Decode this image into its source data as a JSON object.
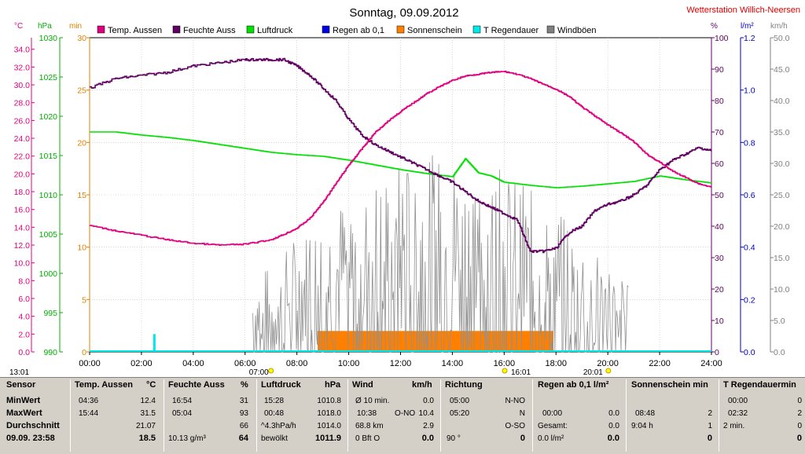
{
  "chart_data": {
    "type": "line",
    "title": "Sonntag, 09.09.2012",
    "station": "Wetterstation Willich-Neersen",
    "legend": [
      {
        "name": "Temp. Aussen",
        "color": "#e0007e"
      },
      {
        "name": "Feuchte Auss",
        "color": "#600060"
      },
      {
        "name": "Luftdruck",
        "color": "#00e000"
      },
      {
        "name": "Regen ab 0,1",
        "color": "#0000e0"
      },
      {
        "name": "Sonnenschein",
        "color": "#ff8000"
      },
      {
        "name": "T Regendauer",
        "color": "#00e8e8"
      },
      {
        "name": "Windböen",
        "color": "#808080"
      }
    ],
    "axis_units": {
      "temp": "°C",
      "press": "hPa",
      "min": "min",
      "hum": "%",
      "rain": "l/m²",
      "wind": "km/h"
    },
    "x_ticks": [
      "00:00",
      "02:00",
      "04:00",
      "06:00",
      "08:00",
      "10:00",
      "12:00",
      "14:00",
      "16:00",
      "18:00",
      "20:00",
      "22:00",
      "24:00"
    ],
    "x_range_hours": [
      0,
      24
    ],
    "temp_ticks": [
      "0.0",
      "2.0",
      "4.0",
      "6.0",
      "8.0",
      "10.0",
      "12.0",
      "14.0",
      "16.0",
      "18.0",
      "20.0",
      "22.0",
      "24.0",
      "26.0",
      "28.0",
      "30.0",
      "32.0",
      "34.0"
    ],
    "press_ticks": [
      "990",
      "995",
      "1000",
      "1005",
      "1010",
      "1015",
      "1020",
      "1025",
      "1030"
    ],
    "min_ticks": [
      "0",
      "5",
      "10",
      "15",
      "20",
      "25",
      "30"
    ],
    "hum_ticks": [
      "0",
      "10",
      "20",
      "30",
      "40",
      "50",
      "60",
      "70",
      "80",
      "90",
      "100"
    ],
    "rain_ticks": [
      "0.0",
      "0.2",
      "0.4",
      "0.6",
      "0.8",
      "1.0",
      "1.2"
    ],
    "wind_ticks": [
      "0.0",
      "5.0",
      "10.0",
      "15.0",
      "20.0",
      "25.0",
      "30.0",
      "35.0",
      "40.0",
      "45.0",
      "50.0"
    ],
    "temp_range": [
      0,
      35.3
    ],
    "press_range": [
      990,
      1030
    ],
    "hum_range": [
      0,
      100
    ],
    "wind_range": [
      0,
      50
    ],
    "temperature": {
      "x": [
        0,
        1,
        2,
        3,
        4,
        5,
        6,
        7,
        7.5,
        8,
        8.5,
        9,
        9.5,
        10,
        10.5,
        11,
        11.5,
        12,
        12.5,
        13,
        13.5,
        14,
        14.5,
        15,
        15.5,
        16,
        16.5,
        17,
        17.5,
        18,
        18.5,
        19,
        19.5,
        20,
        20.5,
        21,
        21.5,
        22,
        22.5,
        23,
        23.5,
        24
      ],
      "y": [
        14.2,
        13.6,
        13.1,
        12.6,
        12.2,
        12.0,
        12.1,
        12.6,
        13.2,
        13.9,
        15.0,
        16.8,
        18.9,
        21.0,
        22.8,
        24.6,
        25.9,
        27.0,
        28.0,
        29.0,
        29.8,
        30.5,
        31.0,
        31.2,
        31.4,
        31.5,
        31.2,
        30.7,
        30.1,
        29.5,
        28.7,
        27.5,
        26.5,
        25.5,
        24.6,
        23.6,
        22.2,
        21.3,
        20.3,
        19.6,
        18.9,
        18.5
      ]
    },
    "humidity": {
      "x": [
        0,
        1,
        2,
        3,
        4,
        5,
        6,
        6.5,
        7,
        7.5,
        8,
        8.5,
        9,
        9.5,
        10,
        10.5,
        11,
        11.5,
        12,
        12.5,
        13,
        13.5,
        14,
        14.5,
        15,
        15.5,
        16,
        16.5,
        17,
        17.5,
        18,
        18.5,
        19,
        19.5,
        20,
        20.5,
        21,
        21.5,
        22,
        22.5,
        23,
        23.5,
        24
      ],
      "y": [
        84,
        87,
        88,
        89,
        91,
        92,
        93,
        93,
        93,
        93,
        91,
        88,
        84,
        80,
        74,
        69,
        66,
        64,
        62,
        60,
        58,
        56,
        54,
        51,
        48,
        46,
        44,
        42,
        32,
        32,
        33,
        38,
        40,
        45,
        47,
        48,
        50,
        53,
        58,
        61,
        63,
        65,
        64
      ]
    },
    "pressure": {
      "x": [
        0,
        1,
        2,
        3,
        4,
        5,
        6,
        7,
        8,
        9,
        10,
        11,
        12,
        13,
        14,
        14.5,
        15,
        15.5,
        16,
        17,
        18,
        19,
        20,
        21,
        22,
        23,
        24
      ],
      "y": [
        1018.0,
        1018.0,
        1017.6,
        1017.3,
        1016.9,
        1016.4,
        1015.9,
        1015.4,
        1015.1,
        1014.9,
        1014.4,
        1013.8,
        1013.2,
        1012.7,
        1012.3,
        1014.6,
        1012.8,
        1012.4,
        1011.6,
        1011.2,
        1010.9,
        1011.1,
        1011.4,
        1011.7,
        1012.4,
        1011.9,
        1011.5
      ]
    },
    "sunshine": {
      "from_hour": 8.8,
      "to_hour": 17.9,
      "minutes": 2
    },
    "rain_duration": {
      "x_hour": 2.5,
      "minutes": 2
    },
    "wind_gusts": {
      "start_hour": 6.3,
      "end_hour": 20.8,
      "max": 31.5
    },
    "markers": [
      {
        "time": "07:00",
        "label": "07:00"
      },
      {
        "time": "16:01",
        "label": "16:01"
      },
      {
        "time": "20:01",
        "label": "20:01"
      },
      {
        "time": "13:01",
        "label": "13:01"
      }
    ]
  },
  "summary": {
    "row_labels": {
      "sensor": "Sensor",
      "min": "MinWert",
      "max": "MaxWert",
      "avg": "Durchschnitt",
      "now": "09.09. 23:58"
    },
    "temp": {
      "header": "Temp. Aussen",
      "unit": "°C",
      "min_time": "04:36",
      "min": "12.4",
      "max_time": "15:44",
      "max": "31.5",
      "avg": "21.07",
      "now": "18.5"
    },
    "hum": {
      "header": "Feuchte Auss",
      "unit": "%",
      "min_time": "16:54",
      "min": "31",
      "max_time": "05:04",
      "max": "93",
      "avg": "66",
      "abs": "10.13 g/m³",
      "now": "64"
    },
    "press": {
      "header": "Luftdruck",
      "unit": "hPa",
      "min_time": "15:28",
      "min": "1010.8",
      "max_time": "00:48",
      "max": "1018.0",
      "trend": "^4.3hPa/h",
      "avg": "1014.0",
      "state": "bewölkt",
      "now": "1011.9"
    },
    "wind": {
      "header": "Wind",
      "unit": "km/h",
      "r1l": "Ø 10 min.",
      "r1v": "0.0",
      "r2l": "10:38",
      "r2d": "O-NO",
      "r2v": "10.4",
      "r3l": "68.8 km",
      "r3v": "2.9",
      "r4l": "0 Bft O",
      "r4v": "0.0"
    },
    "dir": {
      "header": "Richtung",
      "r1t": "05:00",
      "r1v": "N-NO",
      "r2t": "05:20",
      "r2v": "N",
      "r3v": "O-SO",
      "r4l": "90 °",
      "r4v": "0"
    },
    "rain": {
      "header": "Regen ab 0,1 l/m²",
      "r2t": "00:00",
      "r2v": "0.0",
      "r3l": "Gesamt:",
      "r3v": "0.0",
      "r4l": "0.0 l/m²",
      "r4v": "0.0"
    },
    "sun": {
      "header": "Sonnenschein min",
      "r2t": "08:48",
      "r2v": "2",
      "r3l": "9:04 h",
      "r3v": "1",
      "r4v": "0"
    },
    "regd": {
      "header": "T Regendauermin",
      "r1t": "00:00",
      "r1v": "0",
      "r2t": "02:32",
      "r2v": "2",
      "r3l": "2 min.",
      "r3v": "0",
      "r4v": "0"
    }
  }
}
